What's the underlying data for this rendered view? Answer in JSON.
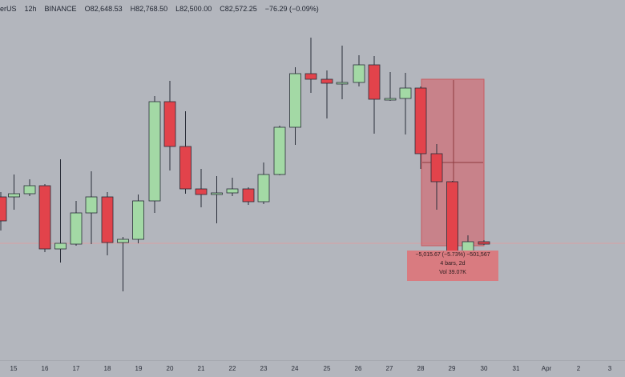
{
  "header": {
    "symbol": "erUS",
    "interval": "12h",
    "exchange": "BINANCE",
    "open": "O82,648.53",
    "high": "H82,768.50",
    "low": "L82,500.00",
    "close": "C82,572.25",
    "change": "−76.29 (−0.09%)"
  },
  "x_axis_labels": [
    "15",
    "16",
    "17",
    "18",
    "19",
    "20",
    "21",
    "22",
    "23",
    "24",
    "25",
    "26",
    "27",
    "28",
    "29",
    "30",
    "31",
    "Apr",
    "2",
    "3"
  ],
  "measure": {
    "change": "−5,015.67 (−5.73%) −501,567",
    "bars": "4 bars, 2d",
    "volume": "Vol 39.07K"
  },
  "colors": {
    "up": "#a3d9a5",
    "down": "#e2434b",
    "background": "#b3b6bd",
    "measure_box": "#d97b80"
  },
  "chart_data": {
    "type": "candlestick",
    "x": [
      "14.5",
      "15",
      "15.5",
      "16",
      "16.5",
      "17",
      "17.5",
      "18",
      "18.5",
      "19",
      "19.5",
      "20",
      "20.5",
      "21",
      "21.5",
      "22",
      "22.5",
      "23",
      "23.5",
      "24",
      "24.5",
      "25",
      "25.5",
      "26",
      "26.5",
      "27",
      "27.5",
      "28",
      "28.5",
      "29",
      "29.5",
      "30"
    ],
    "series": [
      {
        "o": 246,
        "c": 276,
        "h": 240,
        "l": 288
      },
      {
        "o": 246,
        "c": 242,
        "h": 218,
        "l": 262
      },
      {
        "o": 242,
        "c": 232,
        "h": 224,
        "l": 245
      },
      {
        "o": 232,
        "c": 311,
        "h": 230,
        "l": 315
      },
      {
        "o": 311,
        "c": 304,
        "h": 199,
        "l": 328
      },
      {
        "o": 305,
        "c": 266,
        "h": 251,
        "l": 307
      },
      {
        "o": 266,
        "c": 246,
        "h": 214,
        "l": 305
      },
      {
        "o": 246,
        "c": 303,
        "h": 240,
        "l": 319
      },
      {
        "o": 303,
        "c": 299,
        "h": 296,
        "l": 364
      },
      {
        "o": 299,
        "c": 251,
        "h": 243,
        "l": 304
      },
      {
        "o": 251,
        "c": 127,
        "h": 120,
        "l": 266
      },
      {
        "o": 127,
        "c": 183,
        "h": 101,
        "l": 213
      },
      {
        "o": 183,
        "c": 236,
        "h": 139,
        "l": 242
      },
      {
        "o": 236,
        "c": 243,
        "h": 211,
        "l": 259
      },
      {
        "o": 243,
        "c": 241,
        "h": 220,
        "l": 279
      },
      {
        "o": 241,
        "c": 236,
        "h": 222,
        "l": 245
      },
      {
        "o": 236,
        "c": 252,
        "h": 234,
        "l": 256
      },
      {
        "o": 252,
        "c": 218,
        "h": 203,
        "l": 255
      },
      {
        "o": 218,
        "c": 159,
        "h": 157,
        "l": 219
      },
      {
        "o": 159,
        "c": 92,
        "h": 84,
        "l": 181
      },
      {
        "o": 92,
        "c": 99,
        "h": 47,
        "l": 116
      },
      {
        "o": 99,
        "c": 104,
        "h": 88,
        "l": 148
      },
      {
        "o": 104,
        "c": 103,
        "h": 57,
        "l": 124
      },
      {
        "o": 103,
        "c": 81,
        "h": 69,
        "l": 108
      },
      {
        "o": 81,
        "c": 124,
        "h": 70,
        "l": 167
      },
      {
        "o": 124,
        "c": 123,
        "h": 90,
        "l": 126
      },
      {
        "o": 123,
        "c": 110,
        "h": 91,
        "l": 168
      },
      {
        "o": 110,
        "c": 192,
        "h": 108,
        "l": 211
      },
      {
        "o": 192,
        "c": 227,
        "h": 180,
        "l": 262
      },
      {
        "o": 227,
        "c": 316,
        "h": 226,
        "l": 340
      },
      {
        "o": 316,
        "c": 302,
        "h": 294,
        "l": 344
      },
      {
        "o": 302,
        "c": 305,
        "h": 300,
        "l": 306
      }
    ]
  }
}
